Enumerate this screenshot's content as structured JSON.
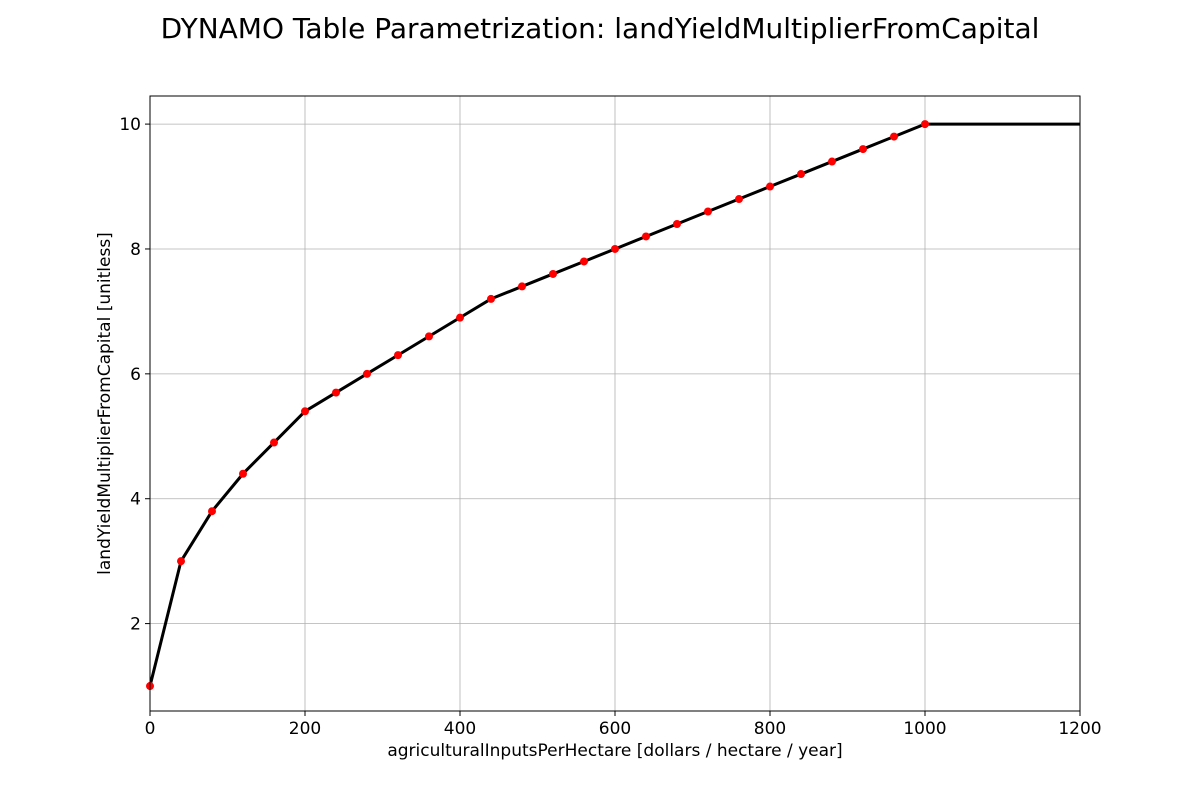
{
  "chart_data": {
    "type": "line",
    "title": "DYNAMO Table Parametrization: landYieldMultiplierFromCapital",
    "xlabel": "agriculturalInputsPerHectare [dollars / hectare / year]",
    "ylabel": "landYieldMultiplierFromCapital [unitless]",
    "xlim": [
      0,
      1200
    ],
    "ylim": [
      0.6,
      10.45
    ],
    "xticks": [
      0,
      200,
      400,
      600,
      800,
      1000,
      1200
    ],
    "xtick_labels": [
      "0",
      "200",
      "400",
      "600",
      "800",
      "1000",
      "1200"
    ],
    "yticks": [
      2,
      4,
      6,
      8,
      10
    ],
    "ytick_labels": [
      "2",
      "4",
      "6",
      "8",
      "10"
    ],
    "grid": true,
    "series": [
      {
        "kind": "interpolated-line",
        "color": "#000000",
        "x": [
          0,
          40,
          80,
          120,
          160,
          200,
          240,
          280,
          320,
          360,
          400,
          440,
          480,
          520,
          560,
          600,
          640,
          680,
          720,
          760,
          800,
          840,
          880,
          920,
          960,
          1000,
          1200
        ],
        "y": [
          1.0,
          3.0,
          3.8,
          4.4,
          4.9,
          5.4,
          5.7,
          6.0,
          6.3,
          6.6,
          6.9,
          7.2,
          7.4,
          7.6,
          7.8,
          8.0,
          8.2,
          8.4,
          8.6,
          8.8,
          9.0,
          9.2,
          9.4,
          9.6,
          9.8,
          10.0,
          10.0
        ]
      },
      {
        "kind": "table-points",
        "color": "#ff0000",
        "x": [
          0,
          40,
          80,
          120,
          160,
          200,
          240,
          280,
          320,
          360,
          400,
          440,
          480,
          520,
          560,
          600,
          640,
          680,
          720,
          760,
          800,
          840,
          880,
          920,
          960,
          1000
        ],
        "y": [
          1.0,
          3.0,
          3.8,
          4.4,
          4.9,
          5.4,
          5.7,
          6.0,
          6.3,
          6.6,
          6.9,
          7.2,
          7.4,
          7.6,
          7.8,
          8.0,
          8.2,
          8.4,
          8.6,
          8.8,
          9.0,
          9.2,
          9.4,
          9.6,
          9.8,
          10.0
        ]
      }
    ]
  }
}
